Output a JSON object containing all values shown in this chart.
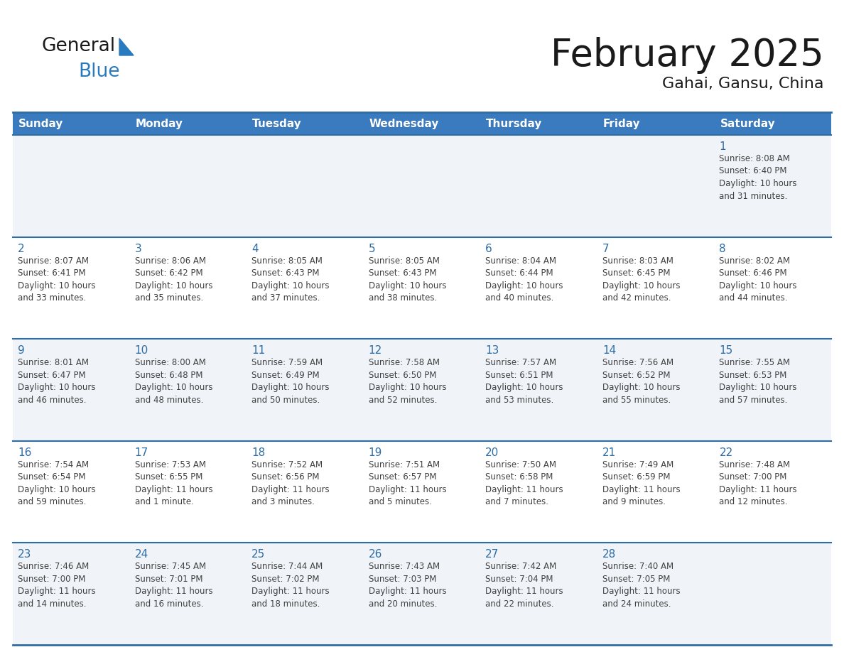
{
  "title": "February 2025",
  "subtitle": "Gahai, Gansu, China",
  "days_of_week": [
    "Sunday",
    "Monday",
    "Tuesday",
    "Wednesday",
    "Thursday",
    "Friday",
    "Saturday"
  ],
  "header_bg": "#3a7abf",
  "header_text": "#ffffff",
  "row_bg_odd": "#f0f4f8",
  "row_bg_even": "#ffffff",
  "border_color": "#2e6da4",
  "day_num_color": "#2e6da4",
  "text_color": "#404040",
  "title_color": "#1a1a1a",
  "logo_black": "#1a1a1a",
  "logo_blue": "#2a7abf",
  "triangle_color": "#2a7abf",
  "weeks": [
    [
      {
        "day": null,
        "sunrise": null,
        "sunset": null,
        "daylight": null
      },
      {
        "day": null,
        "sunrise": null,
        "sunset": null,
        "daylight": null
      },
      {
        "day": null,
        "sunrise": null,
        "sunset": null,
        "daylight": null
      },
      {
        "day": null,
        "sunrise": null,
        "sunset": null,
        "daylight": null
      },
      {
        "day": null,
        "sunrise": null,
        "sunset": null,
        "daylight": null
      },
      {
        "day": null,
        "sunrise": null,
        "sunset": null,
        "daylight": null
      },
      {
        "day": 1,
        "sunrise": "8:08 AM",
        "sunset": "6:40 PM",
        "daylight": "10 hours\nand 31 minutes."
      }
    ],
    [
      {
        "day": 2,
        "sunrise": "8:07 AM",
        "sunset": "6:41 PM",
        "daylight": "10 hours\nand 33 minutes."
      },
      {
        "day": 3,
        "sunrise": "8:06 AM",
        "sunset": "6:42 PM",
        "daylight": "10 hours\nand 35 minutes."
      },
      {
        "day": 4,
        "sunrise": "8:05 AM",
        "sunset": "6:43 PM",
        "daylight": "10 hours\nand 37 minutes."
      },
      {
        "day": 5,
        "sunrise": "8:05 AM",
        "sunset": "6:43 PM",
        "daylight": "10 hours\nand 38 minutes."
      },
      {
        "day": 6,
        "sunrise": "8:04 AM",
        "sunset": "6:44 PM",
        "daylight": "10 hours\nand 40 minutes."
      },
      {
        "day": 7,
        "sunrise": "8:03 AM",
        "sunset": "6:45 PM",
        "daylight": "10 hours\nand 42 minutes."
      },
      {
        "day": 8,
        "sunrise": "8:02 AM",
        "sunset": "6:46 PM",
        "daylight": "10 hours\nand 44 minutes."
      }
    ],
    [
      {
        "day": 9,
        "sunrise": "8:01 AM",
        "sunset": "6:47 PM",
        "daylight": "10 hours\nand 46 minutes."
      },
      {
        "day": 10,
        "sunrise": "8:00 AM",
        "sunset": "6:48 PM",
        "daylight": "10 hours\nand 48 minutes."
      },
      {
        "day": 11,
        "sunrise": "7:59 AM",
        "sunset": "6:49 PM",
        "daylight": "10 hours\nand 50 minutes."
      },
      {
        "day": 12,
        "sunrise": "7:58 AM",
        "sunset": "6:50 PM",
        "daylight": "10 hours\nand 52 minutes."
      },
      {
        "day": 13,
        "sunrise": "7:57 AM",
        "sunset": "6:51 PM",
        "daylight": "10 hours\nand 53 minutes."
      },
      {
        "day": 14,
        "sunrise": "7:56 AM",
        "sunset": "6:52 PM",
        "daylight": "10 hours\nand 55 minutes."
      },
      {
        "day": 15,
        "sunrise": "7:55 AM",
        "sunset": "6:53 PM",
        "daylight": "10 hours\nand 57 minutes."
      }
    ],
    [
      {
        "day": 16,
        "sunrise": "7:54 AM",
        "sunset": "6:54 PM",
        "daylight": "10 hours\nand 59 minutes."
      },
      {
        "day": 17,
        "sunrise": "7:53 AM",
        "sunset": "6:55 PM",
        "daylight": "11 hours\nand 1 minute."
      },
      {
        "day": 18,
        "sunrise": "7:52 AM",
        "sunset": "6:56 PM",
        "daylight": "11 hours\nand 3 minutes."
      },
      {
        "day": 19,
        "sunrise": "7:51 AM",
        "sunset": "6:57 PM",
        "daylight": "11 hours\nand 5 minutes."
      },
      {
        "day": 20,
        "sunrise": "7:50 AM",
        "sunset": "6:58 PM",
        "daylight": "11 hours\nand 7 minutes."
      },
      {
        "day": 21,
        "sunrise": "7:49 AM",
        "sunset": "6:59 PM",
        "daylight": "11 hours\nand 9 minutes."
      },
      {
        "day": 22,
        "sunrise": "7:48 AM",
        "sunset": "7:00 PM",
        "daylight": "11 hours\nand 12 minutes."
      }
    ],
    [
      {
        "day": 23,
        "sunrise": "7:46 AM",
        "sunset": "7:00 PM",
        "daylight": "11 hours\nand 14 minutes."
      },
      {
        "day": 24,
        "sunrise": "7:45 AM",
        "sunset": "7:01 PM",
        "daylight": "11 hours\nand 16 minutes."
      },
      {
        "day": 25,
        "sunrise": "7:44 AM",
        "sunset": "7:02 PM",
        "daylight": "11 hours\nand 18 minutes."
      },
      {
        "day": 26,
        "sunrise": "7:43 AM",
        "sunset": "7:03 PM",
        "daylight": "11 hours\nand 20 minutes."
      },
      {
        "day": 27,
        "sunrise": "7:42 AM",
        "sunset": "7:04 PM",
        "daylight": "11 hours\nand 22 minutes."
      },
      {
        "day": 28,
        "sunrise": "7:40 AM",
        "sunset": "7:05 PM",
        "daylight": "11 hours\nand 24 minutes."
      },
      {
        "day": null,
        "sunrise": null,
        "sunset": null,
        "daylight": null
      }
    ]
  ]
}
